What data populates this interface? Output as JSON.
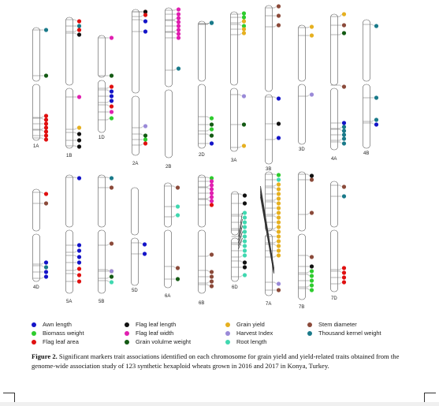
{
  "colors": {
    "awn": "#1414c8",
    "bio": "#2ecc2e",
    "fla": "#e01010",
    "fll": "#111111",
    "flw": "#e020b0",
    "gvw": "#145a14",
    "gy": "#e6b020",
    "hi": "#9a8ad8",
    "rl": "#40d8b0",
    "sd": "#8b4a3a",
    "tkw": "#1a7a8a"
  },
  "legend": {
    "columns": [
      [
        {
          "key": "awn",
          "label": "Awn length"
        },
        {
          "key": "bio",
          "label": "Biomass weight"
        },
        {
          "key": "fla",
          "label": "Flag leaf area"
        }
      ],
      [
        {
          "key": "fll",
          "label": "Flag leaf length"
        },
        {
          "key": "flw",
          "label": "Flag leaf width"
        },
        {
          "key": "gvw",
          "label": "Grain volulme weight"
        }
      ],
      [
        {
          "key": "gy",
          "label": "Grain yield"
        },
        {
          "key": "hi",
          "label": "Harvest Index"
        },
        {
          "key": "rl",
          "label": "Root length"
        }
      ],
      [
        {
          "key": "sd",
          "label": "Stem diameter"
        },
        {
          "key": "tkw",
          "label": "Thousand kernel weight"
        }
      ]
    ]
  },
  "caption": {
    "label": "Figure 2.",
    "text": " Significant markers trait associations identified on each chromosome for grain yield and yield-related traits obtained from the genome-wide association study of 123 synthetic hexaploid wheats grown in 2016 and 2017 in Konya, Turkey."
  },
  "chromosomes": [
    {
      "name": "1A",
      "dots": [
        [
          "tkw",
          38
        ],
        [
          "gvw",
          96
        ],
        [
          "fla",
          147
        ],
        [
          "fla",
          152
        ],
        [
          "fla",
          157
        ],
        [
          "fla",
          162
        ],
        [
          "fla",
          167
        ],
        [
          "fla",
          172
        ],
        [
          "fla",
          177
        ]
      ]
    },
    {
      "name": "1B",
      "dots": [
        [
          "fla",
          27
        ],
        [
          "tkw",
          33
        ],
        [
          "fla",
          38
        ],
        [
          "fll",
          44
        ],
        [
          "flw",
          123
        ],
        [
          "gy",
          162
        ],
        [
          "fll",
          170
        ],
        [
          "fll",
          178
        ],
        [
          "fll",
          186
        ]
      ]
    },
    {
      "name": "1D",
      "dots": [
        [
          "flw",
          48
        ],
        [
          "gvw",
          96
        ],
        [
          "fla",
          110
        ],
        [
          "awn",
          116
        ],
        [
          "awn",
          122
        ],
        [
          "awn",
          128
        ],
        [
          "fla",
          135
        ],
        [
          "flw",
          142
        ],
        [
          "bio",
          150
        ]
      ]
    },
    {
      "name": "2A",
      "dots": [
        [
          "fla",
          15
        ],
        [
          "fll",
          15
        ],
        [
          "fla",
          19
        ],
        [
          "awn",
          27
        ],
        [
          "awn",
          40
        ],
        [
          "hi",
          160
        ],
        [
          "gvw",
          172
        ],
        [
          "bio",
          177
        ],
        [
          "fla",
          182
        ]
      ]
    },
    {
      "name": "2B",
      "dots": [
        [
          "flw",
          12
        ],
        [
          "flw",
          18
        ],
        [
          "flw",
          23
        ],
        [
          "flw",
          28
        ],
        [
          "flw",
          33
        ],
        [
          "flw",
          38
        ],
        [
          "flw",
          43
        ],
        [
          "flw",
          48
        ],
        [
          "tkw",
          87
        ]
      ]
    },
    {
      "name": "2D",
      "dots": [
        [
          "tkw",
          29
        ],
        [
          "tkw",
          29
        ],
        [
          "tkw",
          29
        ],
        [
          "bio",
          150
        ],
        [
          "gvw",
          158
        ],
        [
          "bio",
          164
        ],
        [
          "gvw",
          172
        ],
        [
          "awn",
          182
        ]
      ]
    },
    {
      "name": "3A",
      "dots": [
        [
          "bio",
          17
        ],
        [
          "bio",
          22
        ],
        [
          "gy",
          27
        ],
        [
          "bio",
          33
        ],
        [
          "gy",
          37
        ],
        [
          "gy",
          42
        ],
        [
          "hi",
          122
        ],
        [
          "gvw",
          158
        ],
        [
          "gy",
          185
        ]
      ]
    },
    {
      "name": "3B",
      "dots": [
        [
          "sd",
          8
        ],
        [
          "sd",
          20
        ],
        [
          "sd",
          32
        ],
        [
          "awn",
          125
        ],
        [
          "fll",
          157
        ],
        [
          "awn",
          175
        ]
      ]
    },
    {
      "name": "3D",
      "dots": [
        [
          "gy",
          34
        ],
        [
          "gy",
          45
        ],
        [
          "hi",
          120
        ]
      ]
    },
    {
      "name": "4A",
      "dots": [
        [
          "gy",
          18
        ],
        [
          "sd",
          32
        ],
        [
          "gvw",
          42
        ],
        [
          "sd",
          110
        ],
        [
          "awn",
          156
        ],
        [
          "tkw",
          161
        ],
        [
          "tkw",
          166
        ],
        [
          "tkw",
          171
        ],
        [
          "tkw",
          176
        ],
        [
          "tkw",
          182
        ]
      ]
    },
    {
      "name": "4B",
      "dots": [
        [
          "tkw",
          33
        ],
        [
          "tkw",
          124
        ],
        [
          "tkw",
          152
        ],
        [
          "awn",
          158
        ]
      ]
    },
    {
      "name": "4D",
      "dots": [
        [
          "fla",
          246
        ],
        [
          "sd",
          258
        ],
        [
          "awn",
          333
        ],
        [
          "tkw",
          339
        ],
        [
          "awn",
          345
        ],
        [
          "awn",
          351
        ]
      ]
    },
    {
      "name": "5A",
      "dots": [
        [
          "awn",
          226
        ],
        [
          "awn",
          311
        ],
        [
          "awn",
          318
        ],
        [
          "awn",
          326
        ],
        [
          "awn",
          333
        ],
        [
          "fla",
          341
        ],
        [
          "fla",
          349
        ],
        [
          "fla",
          357
        ]
      ]
    },
    {
      "name": "5B",
      "dots": [
        [
          "tkw",
          226
        ],
        [
          "sd",
          238
        ],
        [
          "sd",
          309
        ],
        [
          "gy",
          344
        ],
        [
          "hi",
          344
        ],
        [
          "gvw",
          351
        ],
        [
          "rl",
          358
        ]
      ]
    },
    {
      "name": "5D",
      "dots": [
        [
          "awn",
          310
        ],
        [
          "awn",
          322
        ]
      ]
    },
    {
      "name": "6A",
      "dots": [
        [
          "sd",
          238
        ],
        [
          "rl",
          262
        ],
        [
          "rl",
          273
        ],
        [
          "sd",
          340
        ],
        [
          "gvw",
          354
        ]
      ]
    },
    {
      "name": "6B",
      "dots": [
        [
          "bio",
          226
        ],
        [
          "flw",
          230
        ],
        [
          "flw",
          235
        ],
        [
          "flw",
          240
        ],
        [
          "flw",
          245
        ],
        [
          "flw",
          250
        ],
        [
          "flw",
          255
        ],
        [
          "fla",
          260
        ],
        [
          "sd",
          323
        ],
        [
          "sd",
          345
        ],
        [
          "sd",
          351
        ],
        [
          "sd",
          357
        ],
        [
          "sd",
          363
        ]
      ]
    },
    {
      "name": "6D",
      "dots": [
        [
          "fll",
          248
        ],
        [
          "fll",
          258
        ],
        [
          "rl",
          270
        ],
        [
          "rl",
          276
        ],
        [
          "rl",
          282
        ],
        [
          "rl",
          288
        ],
        [
          "rl",
          294
        ],
        [
          "rl",
          300
        ],
        [
          "rl",
          306
        ],
        [
          "rl",
          312
        ],
        [
          "rl",
          318
        ],
        [
          "rl",
          324
        ],
        [
          "fll",
          333
        ],
        [
          "fll",
          339
        ],
        [
          "rl",
          349
        ]
      ]
    },
    {
      "name": "7A",
      "dots": [
        [
          "bio",
          222
        ],
        [
          "rl",
          228
        ],
        [
          "gy",
          234
        ],
        [
          "gy",
          240
        ],
        [
          "gy",
          246
        ],
        [
          "gy",
          252
        ],
        [
          "gy",
          258
        ],
        [
          "gy",
          264
        ],
        [
          "gy",
          270
        ],
        [
          "gy",
          276
        ],
        [
          "gy",
          282
        ],
        [
          "gy",
          288
        ],
        [
          "gy",
          294
        ],
        [
          "gy",
          300
        ],
        [
          "gy",
          306
        ],
        [
          "gy",
          312
        ],
        [
          "gy",
          318
        ],
        [
          "gy",
          324
        ],
        [
          "hi",
          360
        ],
        [
          "sd",
          368
        ]
      ]
    },
    {
      "name": "7B",
      "dots": [
        [
          "fll",
          223
        ],
        [
          "sd",
          228
        ],
        [
          "sd",
          270
        ],
        [
          "sd",
          326
        ],
        [
          "fll",
          338
        ],
        [
          "bio",
          344
        ],
        [
          "bio",
          350
        ],
        [
          "bio",
          356
        ],
        [
          "bio",
          362
        ],
        [
          "bio",
          368
        ]
      ]
    },
    {
      "name": "7D",
      "dots": [
        [
          "sd",
          237
        ],
        [
          "tkw",
          249
        ],
        [
          "fla",
          340
        ],
        [
          "fla",
          346
        ],
        [
          "fla",
          352
        ],
        [
          "fla",
          358
        ]
      ]
    }
  ]
}
